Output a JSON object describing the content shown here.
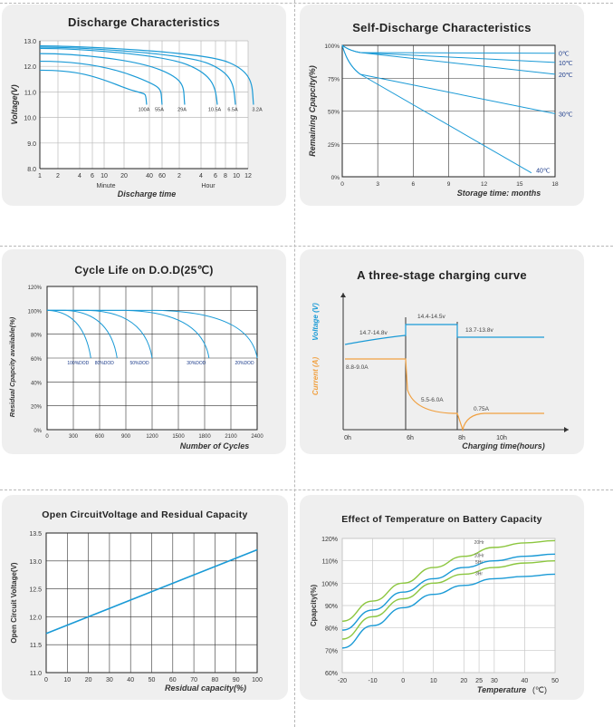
{
  "charts": [
    {
      "id": "discharge",
      "title": "Discharge Characteristics",
      "type": "line",
      "ylabel": "Voltage(V)",
      "xlabel": "Discharge time",
      "xunit_left": "Minute",
      "xunit_right": "Hour",
      "yticks": [
        "13.0",
        "12.0",
        "11.0",
        "10.0",
        "9.0",
        "8.0"
      ],
      "xticks": [
        "1",
        "2",
        "4",
        "6",
        "10",
        "20",
        "40",
        "60",
        "2",
        "4",
        "6",
        "8",
        "10",
        "12"
      ],
      "series": [
        {
          "name": "100A",
          "end_label": "100A"
        },
        {
          "name": "55A",
          "end_label": "55A"
        },
        {
          "name": "29A",
          "end_label": "29A"
        },
        {
          "name": "10.5A",
          "end_label": "10.5A"
        },
        {
          "name": "6.5A",
          "end_label": "6.5A"
        },
        {
          "name": "3.2A",
          "end_label": "3.2A"
        }
      ],
      "line_color": "#1a9ad6"
    },
    {
      "id": "self_discharge",
      "title": "Self-Discharge Characteristics",
      "type": "line",
      "ylabel": "Remaining Cpapcity(%)",
      "xlabel": "Storage time: months",
      "yticks": [
        "100%",
        "75%",
        "50%",
        "25%",
        "0%"
      ],
      "xticks": [
        "0",
        "3",
        "6",
        "9",
        "12",
        "15",
        "18"
      ],
      "series": [
        {
          "name": "0℃",
          "label": "0℃",
          "values": [
            [
              0,
              100
            ],
            [
              18,
              94
            ]
          ]
        },
        {
          "name": "10℃",
          "label": "10℃",
          "values": [
            [
              0,
              100
            ],
            [
              18,
              87
            ]
          ]
        },
        {
          "name": "20℃",
          "label": "20℃",
          "values": [
            [
              0,
              100
            ],
            [
              18,
              78
            ]
          ]
        },
        {
          "name": "30℃",
          "label": "30℃",
          "values": [
            [
              0,
              100
            ],
            [
              18,
              48
            ]
          ]
        },
        {
          "name": "40℃",
          "label": "40℃",
          "values": [
            [
              0,
              100
            ],
            [
              16,
              3
            ]
          ]
        }
      ],
      "line_color": "#1a9ad6"
    },
    {
      "id": "cycle_life",
      "title": "Cycle Life on D.O.D(25℃)",
      "type": "line",
      "ylabel": "Residual Cpapcity available(%)",
      "xlabel": "Number of Cycles",
      "yticks": [
        "120%",
        "100%",
        "80%",
        "60%",
        "40%",
        "20%",
        "0%"
      ],
      "xticks": [
        "0",
        "300",
        "600",
        "900",
        "1200",
        "1500",
        "1800",
        "2100",
        "2400"
      ],
      "series": [
        {
          "name": "100%DOD",
          "label": "100%DOD",
          "end": 500
        },
        {
          "name": "80%DOD",
          "label": "80%DOD",
          "end": 800
        },
        {
          "name": "50%DOD",
          "label": "50%DOD",
          "end": 1200
        },
        {
          "name": "30%DOD",
          "label": "30%DOD",
          "end": 1850
        },
        {
          "name": "20%DOD",
          "label": "20%DOD",
          "end": 2400
        }
      ],
      "line_color": "#1a9ad6"
    },
    {
      "id": "charging",
      "title": "A three-stage charging curve",
      "type": "line",
      "ylabel_current": "Current (A)",
      "ylabel_voltage": "Voltage (V)",
      "xlabel": "Charging time(hours)",
      "xticks": [
        "0h",
        "6h",
        "8h",
        "10h"
      ],
      "annotations": [
        "14.7-14.8v",
        "14.4-14.5v",
        "13.7-13.8v",
        "8.8-9.0A",
        "5.5-6.0A",
        "0.75A"
      ],
      "voltage_color": "#1a9ad6",
      "current_color": "#f0a040"
    },
    {
      "id": "ocv",
      "title": "Open CircuitVoltage and Residual Capacity",
      "type": "line",
      "ylabel": "Open Circuit Voltage(V)",
      "xlabel": "Residual capacity(%)",
      "yticks": [
        "13.5",
        "13.0",
        "12.5",
        "12.0",
        "11.5",
        "11.0"
      ],
      "xticks": [
        "0",
        "10",
        "20",
        "30",
        "40",
        "50",
        "60",
        "70",
        "80",
        "90",
        "100"
      ],
      "ylim": [
        11.0,
        13.5
      ],
      "xlim": [
        0,
        100
      ],
      "series": [
        {
          "name": "ocv",
          "values": [
            [
              0,
              11.7
            ],
            [
              100,
              13.2
            ]
          ]
        }
      ],
      "line_color": "#1a9ad6"
    },
    {
      "id": "temperature",
      "title": "Effect of Temperature on Battery Capacity",
      "type": "line",
      "ylabel": "Cpapcity(%)",
      "xlabel": "Temperature",
      "xunit": "(℃)",
      "yticks": [
        "120%",
        "110%",
        "100%",
        "90%",
        "80%",
        "70%",
        "60%"
      ],
      "xticks": [
        "-20",
        "-10",
        "0",
        "10",
        "20",
        "25",
        "30",
        "40",
        "50"
      ],
      "series": [
        {
          "name": "20Hr",
          "label": "20Hr",
          "color": "#8cc63f",
          "values": [
            [
              -20,
              83
            ],
            [
              -10,
              92
            ],
            [
              0,
              100
            ],
            [
              10,
              107
            ],
            [
              20,
              112
            ],
            [
              30,
              116
            ],
            [
              40,
              118
            ],
            [
              50,
              119
            ]
          ]
        },
        {
          "name": "10Hr",
          "label": "10Hr",
          "color": "#1a9ad6",
          "values": [
            [
              -20,
              79
            ],
            [
              -10,
              88
            ],
            [
              0,
              96
            ],
            [
              10,
              102
            ],
            [
              20,
              107
            ],
            [
              30,
              110
            ],
            [
              40,
              112
            ],
            [
              50,
              113
            ]
          ]
        },
        {
          "name": "5Hr",
          "label": "5Hr",
          "color": "#8cc63f",
          "values": [
            [
              -20,
              75
            ],
            [
              -10,
              85
            ],
            [
              0,
              93
            ],
            [
              10,
              100
            ],
            [
              20,
              104
            ],
            [
              30,
              107
            ],
            [
              40,
              109
            ],
            [
              50,
              110
            ]
          ]
        },
        {
          "name": "3Hr",
          "label": "3Hr",
          "color": "#1a9ad6",
          "values": [
            [
              -20,
              71
            ],
            [
              -10,
              81
            ],
            [
              0,
              89
            ],
            [
              10,
              95
            ],
            [
              20,
              99
            ],
            [
              30,
              102
            ],
            [
              40,
              103
            ],
            [
              50,
              104
            ]
          ]
        }
      ]
    }
  ]
}
